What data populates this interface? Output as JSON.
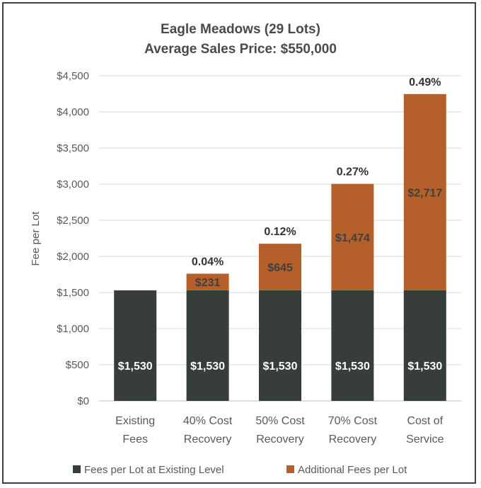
{
  "chart_data": {
    "type": "bar",
    "stacked": true,
    "title": "Eagle Meadows (29 Lots)",
    "subtitle": "Average Sales Price: $550,000",
    "ylabel": "Fee per Lot",
    "xlabel": "",
    "ylim": [
      0,
      4500
    ],
    "ytick_step": 500,
    "ytick_labels": [
      "$0",
      "$500",
      "$1,000",
      "$1,500",
      "$2,000",
      "$2,500",
      "$3,000",
      "$3,500",
      "$4,000",
      "$4,500"
    ],
    "grid": true,
    "legend_position": "bottom",
    "categories": [
      [
        "Existing",
        "Fees"
      ],
      [
        "40% Cost",
        "Recovery"
      ],
      [
        "50% Cost",
        "Recovery"
      ],
      [
        "70% Cost",
        "Recovery"
      ],
      [
        "Cost of",
        "Service"
      ]
    ],
    "series": [
      {
        "name": "Fees per Lot at Existing Level",
        "color": "#373c3d",
        "values": [
          1530,
          1530,
          1530,
          1530,
          1530
        ],
        "labels": [
          "$1,530",
          "$1,530",
          "$1,530",
          "$1,530",
          "$1,530"
        ]
      },
      {
        "name": "Additional Fees per Lot",
        "color": "#b5602a",
        "values": [
          0,
          231,
          645,
          1474,
          2717
        ],
        "labels": [
          "",
          "$231",
          "$645",
          "$1,474",
          "$2,717"
        ]
      }
    ],
    "top_labels": [
      "",
      "0.04%",
      "0.12%",
      "0.27%",
      "0.49%"
    ]
  }
}
